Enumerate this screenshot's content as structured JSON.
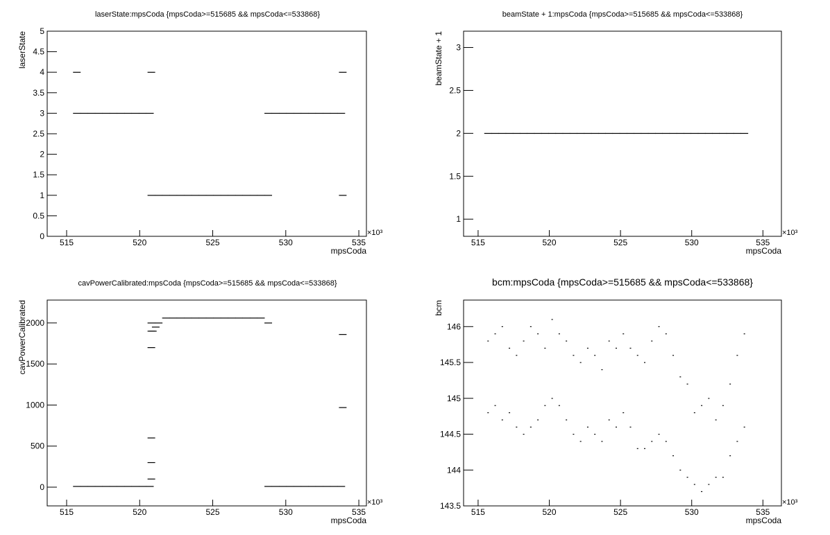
{
  "chart_data": [
    {
      "type": "scatter",
      "title": "laserState:mpsCoda {mpsCoda>=515685 && mpsCoda<=533868}",
      "xlabel": "mpsCoda",
      "ylabel": "laserState",
      "x_exponent_label": "×10³",
      "color": "#000000",
      "x": [
        515.7,
        516.2,
        516.7,
        517.2,
        517.7,
        518.2,
        518.7,
        519.2,
        519.7,
        520.2,
        520.7,
        520.8,
        521.3,
        521.8,
        522.3,
        522.8,
        523.3,
        523.8,
        524.3,
        524.8,
        525.3,
        525.8,
        526.3,
        526.8,
        527.3,
        527.8,
        528.3,
        528.8,
        528.8,
        529.3,
        529.8,
        530.3,
        530.8,
        531.3,
        531.8,
        532.3,
        532.8,
        533.3,
        533.8,
        515.7,
        520.8,
        533.9,
        533.9
      ],
      "values": [
        3,
        3,
        3,
        3,
        3,
        3,
        3,
        3,
        3,
        3,
        3,
        1,
        1,
        1,
        1,
        1,
        1,
        1,
        1,
        1,
        1,
        1,
        1,
        1,
        1,
        1,
        1,
        1,
        3,
        3,
        3,
        3,
        3,
        3,
        3,
        3,
        3,
        3,
        3,
        4,
        4,
        4,
        1
      ],
      "xlim": [
        513.67,
        535.52
      ],
      "xticks": [
        515,
        520,
        525,
        530,
        535
      ],
      "ylim": [
        0,
        5
      ],
      "yticks": [
        0,
        0.5,
        1,
        1.5,
        2,
        2.5,
        3,
        3.5,
        4,
        4.5,
        5
      ]
    },
    {
      "type": "scatter",
      "title": "beamState + 1:mpsCoda {mpsCoda>=515685 && mpsCoda<=533868}",
      "xlabel": "mpsCoda",
      "ylabel": "beamState + 1",
      "x_exponent_label": "×10³",
      "color": "#000000",
      "x": [
        515.7,
        516.2,
        516.7,
        517.2,
        517.7,
        518.2,
        518.7,
        519.2,
        519.7,
        520.2,
        520.7,
        521.2,
        521.7,
        522.2,
        522.7,
        523.2,
        523.7,
        524.2,
        524.7,
        525.2,
        525.7,
        526.2,
        526.7,
        527.2,
        527.7,
        528.2,
        528.7,
        529.2,
        529.7,
        530.2,
        530.7,
        531.2,
        531.7,
        532.2,
        532.7,
        533.2,
        533.7
      ],
      "values": [
        2,
        2,
        2,
        2,
        2,
        2,
        2,
        2,
        2,
        2,
        2,
        2,
        2,
        2,
        2,
        2,
        2,
        2,
        2,
        2,
        2,
        2,
        2,
        2,
        2,
        2,
        2,
        2,
        2,
        2,
        2,
        2,
        2,
        2,
        2,
        2,
        2
      ],
      "xlim": [
        513.98,
        536.3
      ],
      "xticks": [
        515,
        520,
        525,
        530,
        535
      ],
      "ylim": [
        0.8,
        3.19
      ],
      "yticks": [
        1,
        1.5,
        2,
        2.5,
        3
      ]
    },
    {
      "type": "scatter",
      "title": "cavPowerCalibrated:mpsCoda {mpsCoda>=515685 && mpsCoda<=533868}",
      "xlabel": "mpsCoda",
      "ylabel": "cavPowerCalibrated",
      "x_exponent_label": "×10³",
      "color": "#000000",
      "x": [
        515.7,
        516.2,
        516.7,
        517.2,
        517.7,
        518.2,
        518.7,
        519.2,
        519.7,
        520.2,
        520.7,
        520.8,
        520.8,
        520.8,
        520.8,
        520.8,
        520.8,
        520.9,
        521.1,
        521.3,
        521.8,
        522.3,
        522.8,
        523.3,
        523.8,
        524.3,
        524.8,
        525.3,
        525.8,
        526.3,
        526.8,
        527.3,
        527.8,
        528.3,
        528.8,
        528.8,
        529.3,
        529.8,
        530.3,
        530.8,
        531.3,
        531.8,
        532.3,
        532.8,
        533.3,
        533.8,
        533.9,
        533.9
      ],
      "values": [
        10,
        10,
        10,
        10,
        10,
        10,
        10,
        10,
        10,
        10,
        10,
        100,
        300,
        600,
        1700,
        1900,
        2000,
        1900,
        1950,
        2000,
        2060,
        2060,
        2060,
        2060,
        2060,
        2060,
        2060,
        2060,
        2060,
        2060,
        2060,
        2060,
        2060,
        2060,
        2000,
        10,
        10,
        10,
        10,
        10,
        10,
        10,
        10,
        10,
        10,
        10,
        1860,
        970
      ],
      "xlim": [
        513.67,
        535.52
      ],
      "xticks": [
        515,
        520,
        525,
        530,
        535
      ],
      "ylim": [
        -228,
        2278
      ],
      "yticks": [
        0,
        500,
        1000,
        1500,
        2000
      ]
    },
    {
      "type": "scatter",
      "title": "bcm:mpsCoda {mpsCoda>=515685 && mpsCoda<=533868}",
      "xlabel": "mpsCoda",
      "ylabel": "bcm",
      "x_exponent_label": "×10³",
      "color": "#000000",
      "x": [
        515.7,
        516.2,
        516.7,
        517.2,
        517.7,
        518.2,
        518.7,
        519.2,
        519.7,
        520.2,
        520.7,
        521.2,
        521.7,
        522.2,
        522.7,
        523.2,
        523.7,
        524.2,
        524.7,
        525.2,
        525.7,
        526.2,
        526.7,
        527.2,
        527.7,
        528.2,
        528.7,
        529.2,
        529.7,
        530.2,
        530.7,
        531.2,
        531.7,
        532.2,
        532.7,
        533.2,
        533.7
      ],
      "series": [
        {
          "color": "#000000",
          "values": [
            145.8,
            145.9,
            146,
            145.7,
            145.6,
            145.8,
            146,
            145.9,
            145.7,
            146.1,
            145.9,
            145.8,
            145.6,
            145.5,
            145.7,
            145.6,
            145.4,
            145.8,
            145.7,
            145.9,
            145.7,
            145.6,
            145.5,
            145.8,
            146,
            145.9,
            145.6,
            145.3,
            145.2,
            144.8,
            144.9,
            145,
            144.7,
            144.9,
            145.2,
            145.6,
            145.9
          ]
        },
        {
          "color": "#000000",
          "values": [
            144.8,
            144.9,
            144.7,
            144.8,
            144.6,
            144.5,
            144.6,
            144.7,
            144.9,
            145.0,
            144.9,
            144.7,
            144.5,
            144.4,
            144.6,
            144.5,
            144.4,
            144.7,
            144.6,
            144.8,
            144.6,
            144.3,
            144.3,
            144.4,
            144.5,
            144.4,
            144.2,
            144.0,
            143.9,
            143.8,
            143.7,
            143.8,
            143.9,
            143.9,
            144.2,
            144.4,
            144.6
          ]
        }
      ],
      "xlim": [
        513.98,
        536.3
      ],
      "xticks": [
        515,
        520,
        525,
        530,
        535
      ],
      "ylim": [
        143.5,
        146.37
      ],
      "yticks": [
        143.5,
        144,
        144.5,
        145,
        145.5,
        146
      ]
    }
  ]
}
